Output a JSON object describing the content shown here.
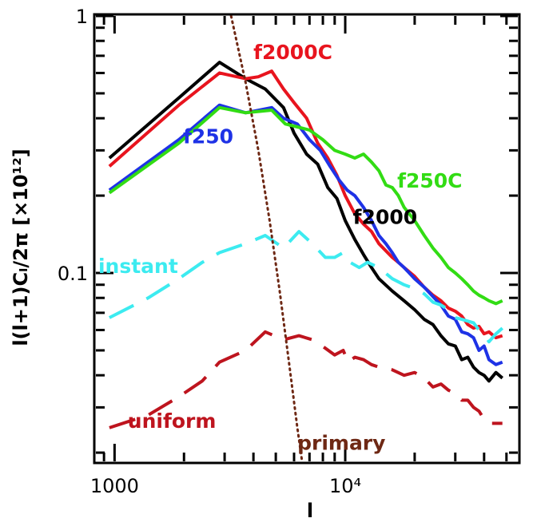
{
  "chart_data": {
    "type": "line",
    "x_scale": "log",
    "y_scale": "log",
    "xlim": [
      830,
      56000
    ],
    "ylim": [
      0.0185,
      1.0
    ],
    "xlabel": "l",
    "ylabel": "l(l+1)Cₗ/2π [×10¹²]",
    "x_ticks": [
      {
        "value": 1000,
        "label": "1000"
      },
      {
        "value": 10000,
        "label": "10⁴"
      }
    ],
    "y_ticks": [
      {
        "value": 0.1,
        "label": "0.1"
      },
      {
        "value": 1.0,
        "label": "1"
      }
    ],
    "series": [
      {
        "name": "f2000",
        "color": "#000000",
        "dash": "solid",
        "label": "f2000",
        "label_at": [
          10800,
          0.155
        ],
        "points": [
          [
            950,
            0.28
          ],
          [
            1900,
            0.48
          ],
          [
            2850,
            0.66
          ],
          [
            3700,
            0.57
          ],
          [
            4500,
            0.52
          ],
          [
            5400,
            0.44
          ],
          [
            6000,
            0.35
          ],
          [
            6800,
            0.29
          ],
          [
            7600,
            0.265
          ],
          [
            8400,
            0.215
          ],
          [
            9200,
            0.195
          ],
          [
            10000,
            0.16
          ],
          [
            11000,
            0.135
          ],
          [
            12000,
            0.118
          ],
          [
            13000,
            0.105
          ],
          [
            14000,
            0.095
          ],
          [
            16000,
            0.085
          ],
          [
            18000,
            0.078
          ],
          [
            20000,
            0.072
          ],
          [
            22000,
            0.066
          ],
          [
            24000,
            0.063
          ],
          [
            26000,
            0.057
          ],
          [
            28000,
            0.053
          ],
          [
            30000,
            0.052
          ],
          [
            32000,
            0.046
          ],
          [
            34000,
            0.047
          ],
          [
            36000,
            0.043
          ],
          [
            38000,
            0.041
          ],
          [
            40000,
            0.04
          ],
          [
            42000,
            0.038
          ],
          [
            45000,
            0.041
          ],
          [
            48000,
            0.039
          ]
        ]
      },
      {
        "name": "f2000C",
        "color": "#e8141e",
        "dash": "solid",
        "label": "f2000C",
        "label_at": [
          4000,
          0.68
        ],
        "points": [
          [
            950,
            0.26
          ],
          [
            1900,
            0.45
          ],
          [
            2850,
            0.6
          ],
          [
            3700,
            0.57
          ],
          [
            4200,
            0.58
          ],
          [
            4800,
            0.61
          ],
          [
            5400,
            0.52
          ],
          [
            6000,
            0.46
          ],
          [
            6800,
            0.4
          ],
          [
            7600,
            0.32
          ],
          [
            8400,
            0.28
          ],
          [
            9200,
            0.24
          ],
          [
            10000,
            0.2
          ],
          [
            11000,
            0.17
          ],
          [
            12000,
            0.155
          ],
          [
            13000,
            0.145
          ],
          [
            14000,
            0.13
          ],
          [
            16000,
            0.115
          ],
          [
            17000,
            0.11
          ],
          [
            18000,
            0.105
          ],
          [
            20000,
            0.097
          ],
          [
            22000,
            0.088
          ],
          [
            24000,
            0.082
          ],
          [
            26000,
            0.078
          ],
          [
            28000,
            0.073
          ],
          [
            30000,
            0.071
          ],
          [
            32000,
            0.068
          ],
          [
            34000,
            0.063
          ],
          [
            36000,
            0.061
          ],
          [
            38000,
            0.062
          ],
          [
            40000,
            0.058
          ],
          [
            42000,
            0.059
          ],
          [
            45000,
            0.056
          ],
          [
            48000,
            0.057
          ]
        ]
      },
      {
        "name": "f250",
        "color": "#1e32e6",
        "dash": "solid",
        "label": "f250",
        "label_at": [
          1980,
          0.32
        ],
        "points": [
          [
            950,
            0.21
          ],
          [
            1900,
            0.33
          ],
          [
            2850,
            0.45
          ],
          [
            3700,
            0.42
          ],
          [
            4800,
            0.44
          ],
          [
            5400,
            0.4
          ],
          [
            6200,
            0.38
          ],
          [
            7000,
            0.33
          ],
          [
            7800,
            0.3
          ],
          [
            8600,
            0.26
          ],
          [
            9400,
            0.23
          ],
          [
            10200,
            0.21
          ],
          [
            11000,
            0.2
          ],
          [
            12000,
            0.18
          ],
          [
            13000,
            0.16
          ],
          [
            14000,
            0.14
          ],
          [
            15000,
            0.13
          ],
          [
            16000,
            0.12
          ],
          [
            17000,
            0.11
          ],
          [
            18000,
            0.105
          ],
          [
            20000,
            0.095
          ],
          [
            22000,
            0.088
          ],
          [
            24000,
            0.081
          ],
          [
            26000,
            0.075
          ],
          [
            28000,
            0.068
          ],
          [
            30000,
            0.066
          ],
          [
            32000,
            0.059
          ],
          [
            34000,
            0.058
          ],
          [
            36000,
            0.056
          ],
          [
            38000,
            0.05
          ],
          [
            40000,
            0.052
          ],
          [
            42000,
            0.046
          ],
          [
            45000,
            0.044
          ],
          [
            48000,
            0.045
          ]
        ]
      },
      {
        "name": "f250C",
        "color": "#32dc14",
        "dash": "solid",
        "label": "f250C",
        "label_at": [
          16800,
          0.215
        ],
        "points": [
          [
            950,
            0.205
          ],
          [
            1900,
            0.32
          ],
          [
            2850,
            0.44
          ],
          [
            3700,
            0.42
          ],
          [
            4800,
            0.43
          ],
          [
            5500,
            0.38
          ],
          [
            6200,
            0.37
          ],
          [
            7000,
            0.36
          ],
          [
            8000,
            0.33
          ],
          [
            9000,
            0.3
          ],
          [
            10000,
            0.29
          ],
          [
            11000,
            0.28
          ],
          [
            12000,
            0.29
          ],
          [
            13000,
            0.27
          ],
          [
            14000,
            0.25
          ],
          [
            15000,
            0.22
          ],
          [
            16000,
            0.215
          ],
          [
            17000,
            0.2
          ],
          [
            18000,
            0.18
          ],
          [
            20000,
            0.16
          ],
          [
            22000,
            0.14
          ],
          [
            24000,
            0.125
          ],
          [
            26000,
            0.115
          ],
          [
            28000,
            0.105
          ],
          [
            30000,
            0.1
          ],
          [
            32000,
            0.095
          ],
          [
            34000,
            0.09
          ],
          [
            36000,
            0.085
          ],
          [
            38000,
            0.082
          ],
          [
            40000,
            0.08
          ],
          [
            42000,
            0.078
          ],
          [
            45000,
            0.076
          ],
          [
            48000,
            0.078
          ]
        ]
      },
      {
        "name": "instant",
        "color": "#3cebf0",
        "dash": "long-dash",
        "label": "instant",
        "label_at": [
          850,
          0.1
        ],
        "points": [
          [
            950,
            0.067
          ],
          [
            1400,
            0.08
          ],
          [
            1900,
            0.095
          ],
          [
            2400,
            0.11
          ],
          [
            2850,
            0.12
          ],
          [
            3700,
            0.13
          ],
          [
            4500,
            0.14
          ],
          [
            5400,
            0.125
          ],
          [
            6300,
            0.145
          ],
          [
            7200,
            0.13
          ],
          [
            8200,
            0.115
          ],
          [
            9000,
            0.115
          ],
          [
            9800,
            0.12
          ],
          [
            10500,
            0.11
          ],
          [
            11500,
            0.105
          ],
          [
            12500,
            0.11
          ],
          [
            14000,
            0.105
          ],
          [
            16000,
            0.095
          ],
          [
            18000,
            0.09
          ],
          [
            20000,
            0.087
          ],
          [
            22000,
            0.083
          ],
          [
            24000,
            0.077
          ],
          [
            26000,
            0.075
          ],
          [
            28000,
            0.072
          ],
          [
            30000,
            0.067
          ],
          [
            32000,
            0.066
          ],
          [
            34000,
            0.065
          ],
          [
            36000,
            0.064
          ],
          [
            38000,
            0.06
          ],
          [
            40000,
            0.058
          ],
          [
            42000,
            0.054
          ],
          [
            45000,
            0.058
          ],
          [
            48000,
            0.061
          ]
        ]
      },
      {
        "name": "uniform",
        "color": "#be141e",
        "dash": "long-dash",
        "label": "uniform",
        "label_at": [
          1140,
          0.025
        ],
        "points": [
          [
            950,
            0.025
          ],
          [
            1400,
            0.028
          ],
          [
            1900,
            0.033
          ],
          [
            2400,
            0.038
          ],
          [
            2850,
            0.045
          ],
          [
            3700,
            0.05
          ],
          [
            4500,
            0.059
          ],
          [
            5400,
            0.055
          ],
          [
            6300,
            0.057
          ],
          [
            7200,
            0.055
          ],
          [
            8200,
            0.051
          ],
          [
            9000,
            0.048
          ],
          [
            9800,
            0.05
          ],
          [
            10300,
            0.045
          ],
          [
            11000,
            0.047
          ],
          [
            12000,
            0.046
          ],
          [
            13000,
            0.044
          ],
          [
            14000,
            0.043
          ],
          [
            16000,
            0.042
          ],
          [
            18000,
            0.04
          ],
          [
            20000,
            0.041
          ],
          [
            22000,
            0.039
          ],
          [
            24000,
            0.036
          ],
          [
            26000,
            0.037
          ],
          [
            28000,
            0.035
          ],
          [
            30000,
            0.034
          ],
          [
            32000,
            0.032
          ],
          [
            34000,
            0.032
          ],
          [
            36000,
            0.03
          ],
          [
            38000,
            0.029
          ],
          [
            40000,
            0.027
          ],
          [
            42000,
            0.026
          ],
          [
            45000,
            0.026
          ],
          [
            48000,
            0.026
          ]
        ]
      },
      {
        "name": "primary",
        "color": "#6e2814",
        "dash": "dotted",
        "label": "primary",
        "label_at": [
          6200,
          0.0205
        ],
        "points": [
          [
            3200,
            1.0
          ],
          [
            3700,
            0.55
          ],
          [
            4200,
            0.3
          ],
          [
            4700,
            0.16
          ],
          [
            5200,
            0.085
          ],
          [
            5700,
            0.045
          ],
          [
            6200,
            0.025
          ],
          [
            6500,
            0.0185
          ]
        ]
      }
    ]
  }
}
